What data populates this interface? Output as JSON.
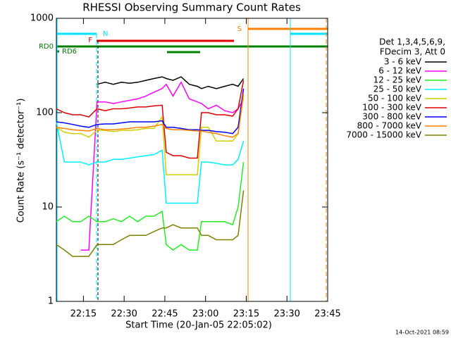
{
  "chart_data": {
    "type": "line",
    "title": "RHESSI Observing Summary Count Rates",
    "xlabel": "Start Time (20-Jan-05 22:05:02)",
    "ylabel": "Count Rate (s⁻¹ detector⁻¹)",
    "legend_header": [
      "Det 1,3,4,5,6,9,",
      "FDecim 3, Att 0"
    ],
    "footer": "14-Oct-2021 08:59",
    "annotations": [
      {
        "text": "N",
        "color": "#00e5ff"
      },
      {
        "text": "F",
        "color": "#e00000"
      },
      {
        "text": "S",
        "color": "#ff8000"
      },
      {
        "text": "RD0",
        "color": "#008000"
      },
      {
        "text": "RD6",
        "color": "#008000"
      }
    ],
    "ylog": true,
    "xlim": [
      5.03,
      105
    ],
    "ylim": [
      1,
      1000
    ],
    "yticks": [
      1,
      10,
      100,
      1000
    ],
    "xticks": [
      {
        "value": 15,
        "label": "22:15"
      },
      {
        "value": 30,
        "label": "22:30"
      },
      {
        "value": 45,
        "label": "22:45"
      },
      {
        "value": 60,
        "label": "23:00"
      },
      {
        "value": 75,
        "label": "23:15"
      },
      {
        "value": 90,
        "label": "23:30"
      },
      {
        "value": 105,
        "label": "23:45"
      }
    ],
    "x": [
      5,
      8,
      11,
      14,
      17,
      20,
      23,
      26,
      29,
      32,
      35,
      38,
      41,
      44,
      45.5,
      48,
      51,
      54,
      57,
      58.5,
      61,
      64,
      67,
      70,
      72,
      74
    ],
    "series": [
      {
        "name": "3 - 6 keV",
        "color": "#000000",
        "values": [
          null,
          null,
          null,
          null,
          null,
          200,
          210,
          200,
          210,
          205,
          210,
          220,
          230,
          240,
          230,
          220,
          240,
          200,
          190,
          180,
          190,
          180,
          190,
          200,
          190,
          230
        ]
      },
      {
        "name": "6 - 12 keV",
        "color": "#ff00ff",
        "values": [
          null,
          null,
          null,
          3.5,
          3.5,
          130,
          130,
          125,
          130,
          135,
          140,
          150,
          165,
          180,
          200,
          150,
          210,
          140,
          130,
          125,
          110,
          120,
          105,
          100,
          110,
          140
        ]
      },
      {
        "name": "12 - 25 keV",
        "color": "#22ee22",
        "values": [
          7,
          8,
          7,
          7,
          8,
          7,
          7,
          7.5,
          7,
          8,
          7,
          8,
          8,
          9,
          4,
          3.5,
          4,
          3.5,
          3.5,
          7,
          7,
          7,
          7,
          6.5,
          10,
          30
        ]
      },
      {
        "name": "25 - 50 keV",
        "color": "#00f0ff",
        "values": [
          80,
          30,
          30,
          30,
          28,
          30,
          30,
          32,
          32,
          33,
          34,
          35,
          36,
          40,
          11,
          11,
          11,
          11,
          11,
          30,
          30,
          29,
          28,
          28,
          32,
          50
        ]
      },
      {
        "name": "50 - 100 keV",
        "color": "#d0d000",
        "values": [
          70,
          62,
          60,
          60,
          55,
          65,
          65,
          63,
          65,
          65,
          66,
          68,
          68,
          90,
          22,
          22,
          22,
          22,
          22,
          70,
          70,
          50,
          50,
          50,
          60,
          150
        ]
      },
      {
        "name": "100 - 300 keV",
        "color": "#dd0000",
        "values": [
          110,
          100,
          95,
          95,
          90,
          110,
          105,
          110,
          110,
          112,
          115,
          115,
          118,
          120,
          38,
          35,
          35,
          33,
          33,
          100,
          100,
          95,
          95,
          92,
          110,
          220
        ]
      },
      {
        "name": "300 - 800 keV",
        "color": "#0000ff",
        "values": [
          80,
          78,
          75,
          72,
          70,
          75,
          76,
          76,
          78,
          80,
          80,
          80,
          80,
          82,
          70,
          70,
          68,
          66,
          66,
          65,
          65,
          63,
          62,
          60,
          70,
          180
        ]
      },
      {
        "name": "800 - 7000 keV",
        "color": "#ff8000",
        "values": [
          70,
          68,
          66,
          65,
          64,
          68,
          66,
          66,
          67,
          68,
          70,
          70,
          72,
          75,
          68,
          66,
          66,
          65,
          64,
          64,
          62,
          60,
          57,
          55,
          60,
          160
        ]
      },
      {
        "name": "7000 - 15000 keV",
        "color": "#808000",
        "values": [
          4,
          3.5,
          3,
          3,
          3,
          4,
          4,
          4,
          4.5,
          5,
          5,
          5,
          5.5,
          6,
          6,
          6.5,
          6,
          6,
          6,
          5,
          5,
          4.5,
          4.5,
          4.5,
          5,
          15
        ]
      }
    ]
  }
}
